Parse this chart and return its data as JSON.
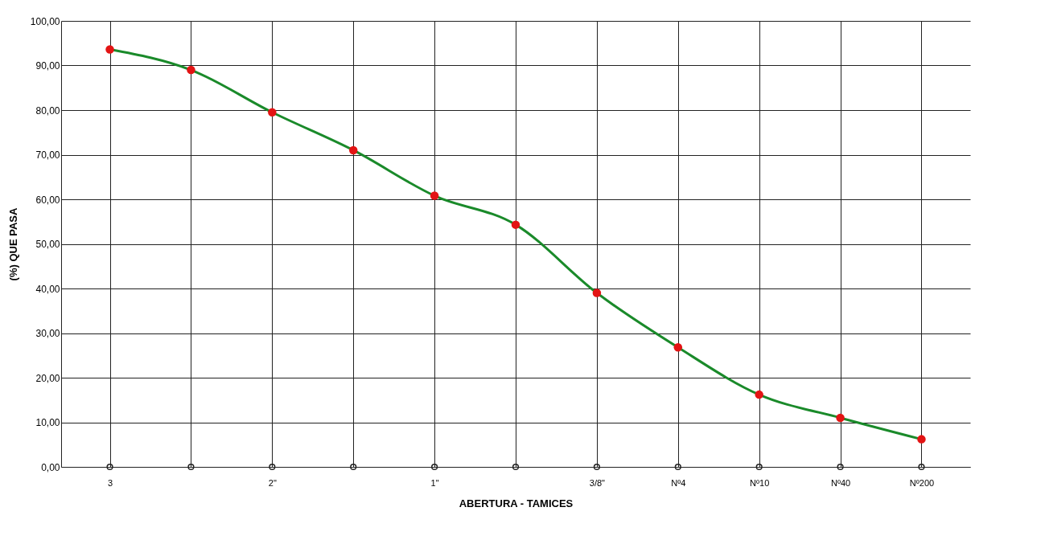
{
  "chart_data": {
    "type": "line",
    "xlabel": "ABERTURA - TAMICES",
    "ylabel": "(%) QUE PASA",
    "grid": true,
    "marker": "circle",
    "line_style": "solid",
    "ylim": [
      0,
      100
    ],
    "yticks": [
      {
        "value": 0,
        "label": "0,00"
      },
      {
        "value": 10,
        "label": "10,00"
      },
      {
        "value": 20,
        "label": "20,00"
      },
      {
        "value": 30,
        "label": "30,00"
      },
      {
        "value": 40,
        "label": "40,00"
      },
      {
        "value": 50,
        "label": "50,00"
      },
      {
        "value": 60,
        "label": "60,00"
      },
      {
        "value": 70,
        "label": "70,00"
      },
      {
        "value": 80,
        "label": "80,00"
      },
      {
        "value": 90,
        "label": "90,00"
      },
      {
        "value": 100,
        "label": "100,00"
      }
    ],
    "categories": [
      "3",
      null,
      "2\"",
      null,
      "1\"",
      null,
      "3/8\"",
      "Nº4",
      "Nº10",
      "Nº40",
      "Nº200"
    ],
    "series": [
      {
        "color": "#1a8a2a",
        "values": [
          93.6,
          89,
          79.5,
          71,
          60.8,
          54.3,
          39,
          26.8,
          16.2,
          11,
          6.2
        ]
      },
      {
        "type": "scatter",
        "color": "#222222",
        "values": [
          0,
          0,
          0,
          0,
          0,
          0,
          0,
          0,
          0,
          0,
          0
        ]
      }
    ]
  }
}
